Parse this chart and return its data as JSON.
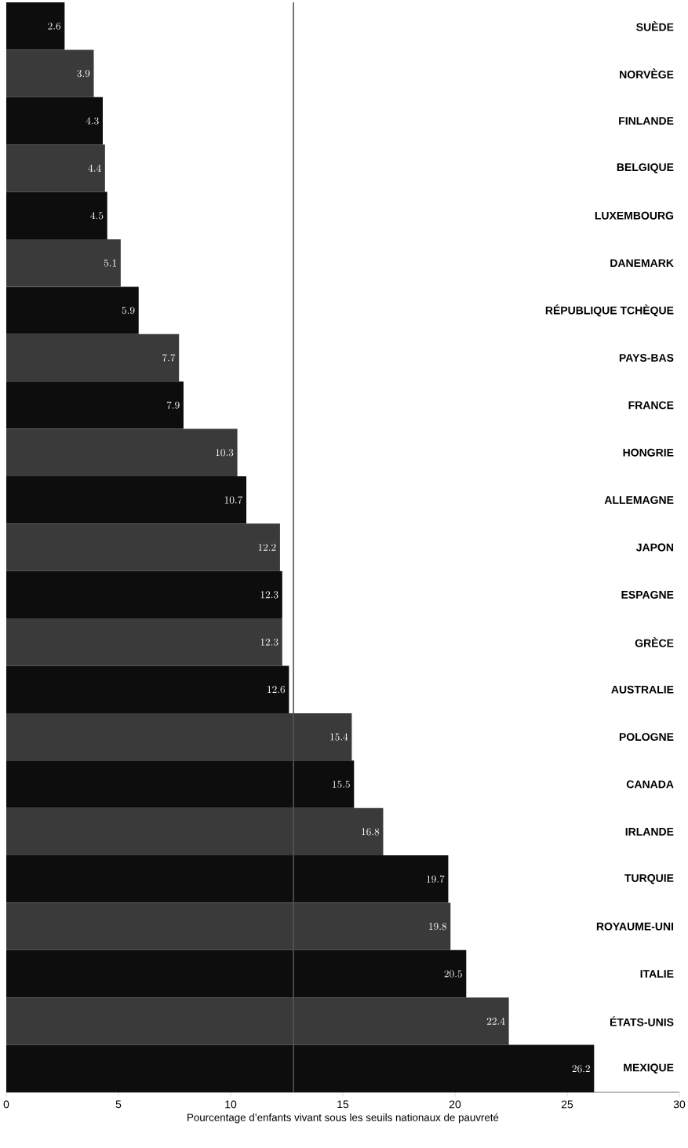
{
  "chart_data": {
    "type": "bar",
    "orientation": "horizontal",
    "categories": [
      "SUÈDE",
      "NORVÈGE",
      "FINLANDE",
      "BELGIQUE",
      "LUXEMBOURG",
      "DANEMARK",
      "RÉPUBLIQUE TCHÈQUE",
      "PAYS-BAS",
      "FRANCE",
      "HONGRIE",
      "ALLEMAGNE",
      "JAPON",
      "ESPAGNE",
      "GRÈCE",
      "AUSTRALIE",
      "POLOGNE",
      "CANADA",
      "IRLANDE",
      "TURQUIE",
      "ROYAUME-UNI",
      "ITALIE",
      "ÉTATS-UNIS",
      "MEXIQUE"
    ],
    "values": [
      2.6,
      3.9,
      4.3,
      4.4,
      4.5,
      5.1,
      5.9,
      7.7,
      7.9,
      10.3,
      10.7,
      12.2,
      12.3,
      12.3,
      12.6,
      15.4,
      15.5,
      16.8,
      19.7,
      19.8,
      20.5,
      22.4,
      26.2
    ],
    "colors": [
      "#0d0d0d",
      "#3a3a3a",
      "#0d0d0d",
      "#3a3a3a",
      "#0d0d0d",
      "#3a3a3a",
      "#0d0d0d",
      "#3a3a3a",
      "#0d0d0d",
      "#3a3a3a",
      "#0d0d0d",
      "#3a3a3a",
      "#0d0d0d",
      "#3a3a3a",
      "#0d0d0d",
      "#3a3a3a",
      "#0d0d0d",
      "#3a3a3a",
      "#0d0d0d",
      "#3a3a3a",
      "#0d0d0d",
      "#3a3a3a",
      "#0d0d0d"
    ],
    "xlim": [
      0,
      30
    ],
    "xticks": [
      0,
      5,
      10,
      15,
      20,
      25,
      30
    ],
    "xlabel": "Pourcentage d’enfants vivant sous les seuils nationaux de pauvreté",
    "data_labels": true,
    "ref_lines": [
      {
        "axis": "x",
        "value": 12.8,
        "color": "#555555"
      }
    ]
  }
}
